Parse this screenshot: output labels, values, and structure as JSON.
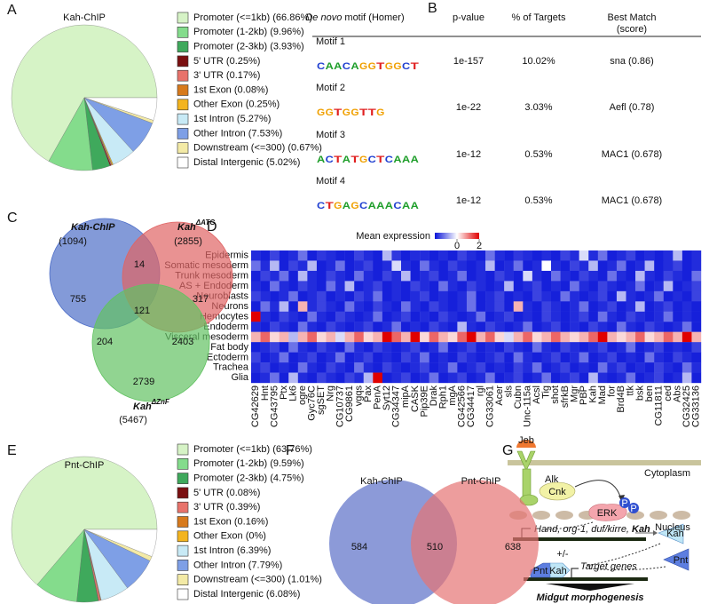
{
  "panel_labels": [
    "A",
    "B",
    "C",
    "D",
    "E",
    "F",
    "G"
  ],
  "chart_data": [
    {
      "type": "pie",
      "title": "Kah-ChIP",
      "categories": [
        "Promoter (<=1kb) (66.86%)",
        "Promoter (1-2kb) (9.96%)",
        "Promoter (2-3kb) (3.93%)",
        "5' UTR (0.25%)",
        "3' UTR (0.17%)",
        "1st Exon (0.08%)",
        "Other Exon (0.25%)",
        "1st Intron (5.27%)",
        "Other Intron (7.53%)",
        "Downstream (<=300) (0.67%)",
        "Distal Intergenic (5.02%)"
      ],
      "values": [
        66.86,
        9.96,
        3.93,
        0.25,
        0.17,
        0.08,
        0.25,
        5.27,
        7.53,
        0.67,
        5.02
      ],
      "colors": [
        "#d6f3c6",
        "#84dc8c",
        "#3fa95c",
        "#7a0f10",
        "#e8736b",
        "#d77a1c",
        "#f3b41f",
        "#c8eaf6",
        "#7e9fe6",
        "#f3eaa6",
        "#ffffff"
      ]
    },
    {
      "type": "pie",
      "title": "Pnt-ChIP",
      "categories": [
        "Promoter (<=1kb) (63.76%)",
        "Promoter (1-2kb) (9.59%)",
        "Promoter (2-3kb) (4.75%)",
        "5' UTR (0.08%)",
        "3' UTR (0.39%)",
        "1st Exon (0.16%)",
        "Other Exon (0%)",
        "1st Intron (6.39%)",
        "Other Intron (7.79%)",
        "Downstream (<=300) (1.01%)",
        "Distal Intergenic (6.08%)"
      ],
      "values": [
        63.76,
        9.59,
        4.75,
        0.08,
        0.39,
        0.16,
        0,
        6.39,
        7.79,
        1.01,
        6.08
      ],
      "colors": [
        "#d6f3c6",
        "#84dc8c",
        "#3fa95c",
        "#7a0f10",
        "#e8736b",
        "#d77a1c",
        "#f3b41f",
        "#c8eaf6",
        "#7e9fe6",
        "#f3eaa6",
        "#ffffff"
      ]
    },
    {
      "type": "heatmap",
      "colorbar_title": "Mean expression",
      "clim": [
        -2,
        2
      ],
      "cticks": [
        0,
        2
      ],
      "colors": [
        "#0a14d8",
        "#ffffff",
        "#e00000"
      ],
      "rows": [
        "Epidermis",
        "Somatic mesoderm",
        "Trunk mesoderm",
        "AS + Endoderm",
        "Neuroblasts",
        "Neurons",
        "Hemocytes",
        "Endoderm",
        "Visceral mesoderm",
        "Fat body",
        "Ectoderm",
        "Trachea",
        "Glia"
      ],
      "columns": [
        "CG42629",
        "Hnt",
        "CG43795",
        "Ptx",
        "Lk6",
        "ogre",
        "Gyc76C",
        "sgSET",
        "Nrg",
        "CG10737",
        "CG9861",
        "vgqs",
        "Pax",
        "PenA",
        "Syt12",
        "CG34347",
        "mipA",
        "CASK",
        "Pip39E",
        "Drak",
        "Rph1",
        "mgA",
        "CG42566",
        "CG34417",
        "rgl",
        "CG33061",
        "Acer",
        "sls",
        "Cubn",
        "Unc-115a",
        "Acsl",
        "Tig",
        "shot",
        "sfrkB",
        "Mgr",
        "PBP",
        "Kah",
        "Mad",
        "for",
        "Brd4B",
        "ttk",
        "bsk",
        "ben",
        "CG11811",
        "ced",
        "Abs",
        "CG32425",
        "CG33136"
      ],
      "values": [
        [
          -1.8,
          -1.9,
          -1.6,
          -1.9,
          -1.8,
          -1.2,
          -1.9,
          -1.7,
          -1.8,
          -1.9,
          -1.9,
          -1.6,
          -1.8,
          -1.9,
          -0.6,
          -1.7,
          -1.9,
          -1.8,
          -1.8,
          -1.9,
          -1.8,
          -1.9,
          -1.6,
          -1.8,
          -1.9,
          -1.2,
          -1.8,
          -1.9,
          -1.7,
          -1.8,
          -1.9,
          -1.8,
          -1.9,
          -1.6,
          -1.8,
          -0.3,
          -1.8,
          -1.2,
          -1.9,
          -1.8,
          -1.6,
          -1.9,
          -1.8,
          -1.9,
          -1.8,
          -0.6,
          -1.9,
          -1.8
        ],
        [
          -1.2,
          -1.8,
          -0.6,
          -1.9,
          -1.6,
          -1.8,
          -0.6,
          -1.9,
          -1.8,
          -1.2,
          -1.9,
          -1.8,
          -1.6,
          -1.9,
          -1.8,
          -0.3,
          -1.8,
          -1.9,
          -1.2,
          -1.8,
          -1.9,
          -1.6,
          -1.8,
          -1.9,
          -1.8,
          -0.6,
          -1.9,
          -1.8,
          -1.2,
          -1.9,
          -1.8,
          0,
          -1.8,
          -1.9,
          -1.6,
          -1.8,
          -0.6,
          -1.9,
          -1.8,
          -1.2,
          -1.9,
          -1.8,
          -0.6,
          -1.9,
          -1.8,
          -1.6,
          -1.9,
          -1.8
        ],
        [
          -1.9,
          -1.6,
          -1.8,
          -1.2,
          -1.9,
          -0.6,
          -1.8,
          -1.9,
          -1.6,
          -1.8,
          -1.9,
          -1.2,
          -1.8,
          -1.9,
          -1.6,
          -1.8,
          -0.6,
          -1.9,
          -1.8,
          -1.6,
          -1.9,
          -1.8,
          -1.2,
          -1.9,
          -1.8,
          -1.9,
          -1.6,
          -1.8,
          -1.9,
          -0.3,
          -1.8,
          -1.9,
          -1.2,
          -1.8,
          -1.9,
          -1.6,
          -1.8,
          -1.9,
          -1.2,
          -1.8,
          -1.9,
          -0.6,
          -1.8,
          -1.9,
          -1.6,
          -1.8,
          -1.9,
          -1.2
        ],
        [
          -1.8,
          -1.9,
          -1.2,
          -1.8,
          -1.9,
          -1.6,
          -1.8,
          -1.9,
          -1.2,
          -1.8,
          -0.6,
          -1.9,
          -1.8,
          -1.6,
          -1.9,
          -1.8,
          -1.9,
          -1.6,
          -1.8,
          -1.9,
          -1.2,
          -1.8,
          -1.9,
          -1.6,
          -1.8,
          -1.9,
          -1.8,
          -0.6,
          -1.9,
          -1.8,
          -1.6,
          -1.9,
          -1.8,
          -1.9,
          -1.2,
          -1.8,
          -1.9,
          -1.6,
          -1.8,
          -1.9,
          -1.8,
          -1.2,
          -1.9,
          -1.8,
          -0.6,
          -1.9,
          -1.8,
          -1.6
        ],
        [
          -1.6,
          -1.8,
          -1.9,
          -1.8,
          -1.2,
          -1.9,
          -1.8,
          -1.6,
          -1.9,
          -1.8,
          -1.9,
          -1.6,
          -1.8,
          -1.2,
          -1.9,
          -1.8,
          -1.9,
          -1.8,
          -1.6,
          -1.9,
          -1.8,
          -1.9,
          -1.8,
          -1.2,
          -1.9,
          -1.8,
          -1.6,
          -1.9,
          -1.8,
          -1.9,
          -1.6,
          -1.8,
          -1.9,
          -1.2,
          -1.8,
          -1.9,
          -1.8,
          -1.6,
          -1.9,
          -0.6,
          -1.8,
          -1.9,
          -1.8,
          -1.2,
          -1.9,
          -1.8,
          -1.9,
          -1.6
        ],
        [
          -1.9,
          -1.2,
          -1.8,
          -0.6,
          -1.9,
          0.6,
          -1.8,
          -1.6,
          -1.8,
          -1.9,
          -1.2,
          -1.8,
          -1.9,
          -1.6,
          -1.8,
          -1.9,
          -1.2,
          -1.8,
          -1.9,
          -1.6,
          -1.8,
          -1.9,
          -1.8,
          -1.2,
          -1.9,
          -1.8,
          -1.6,
          -1.9,
          0.6,
          -1.8,
          -1.9,
          -1.6,
          -1.8,
          -1.9,
          -1.8,
          -1.2,
          -1.9,
          -1.8,
          -1.6,
          -1.9,
          -1.8,
          -0.6,
          -1.9,
          -1.8,
          -1.6,
          -1.9,
          -1.8,
          -1.9
        ],
        [
          2,
          -1.8,
          -1.9,
          -1.6,
          -1.8,
          -1.9,
          -1.2,
          -1.8,
          -1.9,
          -1.6,
          -1.8,
          -1.9,
          -1.8,
          -1.2,
          -1.9,
          -1.8,
          -1.6,
          -1.9,
          -1.8,
          -1.9,
          -1.6,
          -1.8,
          -1.9,
          -1.8,
          -1.2,
          -1.9,
          -1.8,
          -1.6,
          -1.9,
          -1.8,
          -1.9,
          -1.6,
          -1.8,
          -1.9,
          -1.8,
          -1.6,
          -1.9,
          -1.2,
          -1.8,
          -1.9,
          -1.6,
          -1.8,
          -1.9,
          -1.8,
          -1.2,
          -1.9,
          -1.8,
          -1.9
        ],
        [
          -1.8,
          -1.9,
          -1.6,
          -1.8,
          -1.9,
          -1.2,
          -1.8,
          -1.9,
          -1.6,
          -1.8,
          -1.9,
          -1.8,
          -1.6,
          -1.9,
          -1.8,
          -1.2,
          -1.9,
          -1.8,
          -1.9,
          -1.6,
          -1.8,
          -1.9,
          -0.6,
          -1.8,
          -1.9,
          -1.6,
          -1.8,
          -1.9,
          -1.8,
          -1.2,
          -1.9,
          -1.8,
          -1.6,
          -1.9,
          -1.8,
          -1.9,
          -1.6,
          -1.8,
          -1.9,
          -1.2,
          -1.8,
          -1.9,
          -1.6,
          -1.8,
          -1.9,
          -1.8,
          -1.2,
          -1.9
        ],
        [
          0.6,
          1.2,
          0.3,
          0.6,
          -0.6,
          0.6,
          1.2,
          0.3,
          0.6,
          -0.3,
          0.6,
          1.2,
          0.3,
          0.6,
          2,
          1.2,
          0.6,
          2,
          0.3,
          1.2,
          0.6,
          0.3,
          1.2,
          2,
          0.6,
          1.2,
          0.3,
          -0.3,
          0.6,
          1.2,
          0.3,
          0.6,
          1.2,
          0.6,
          0.3,
          0.6,
          1.2,
          2,
          0.6,
          0.3,
          0.6,
          1.2,
          0.3,
          0.6,
          1.2,
          0.6,
          2,
          0.6
        ],
        [
          -1.9,
          -1.8,
          -1.6,
          -1.9,
          -1.2,
          -1.8,
          -1.9,
          -1.6,
          -1.8,
          -1.9,
          -1.2,
          -1.8,
          -1.9,
          -1.6,
          -1.8,
          -1.9,
          -1.8,
          -1.6,
          -1.9,
          -1.8,
          -1.2,
          -1.9,
          -1.8,
          -1.6,
          -1.9,
          -1.8,
          -1.9,
          -1.6,
          -1.8,
          -1.9,
          -1.2,
          -1.8,
          -1.9,
          -1.6,
          -1.8,
          -1.9,
          -1.8,
          -1.6,
          -1.9,
          -1.8,
          -1.2,
          -1.9,
          -1.8,
          -1.6,
          -1.9,
          -1.8,
          -1.9,
          -1.6
        ],
        [
          -1.6,
          -1.9,
          -1.8,
          -1.2,
          -1.9,
          -1.8,
          -1.6,
          -1.9,
          -1.8,
          -1.2,
          -1.9,
          -1.8,
          -1.6,
          -1.9,
          -1.8,
          -1.9,
          -1.6,
          -1.8,
          -1.2,
          -1.9,
          -1.8,
          -1.9,
          -1.6,
          -1.8,
          -1.9,
          -1.8,
          -1.6,
          -1.9,
          -1.2,
          -1.8,
          -1.9,
          -1.8,
          -1.6,
          -1.9,
          -1.8,
          -1.2,
          -1.9,
          -1.8,
          -1.6,
          -1.9,
          -1.8,
          -1.9,
          -1.2,
          -1.8,
          -1.9,
          -1.6,
          -1.8,
          -1.9
        ],
        [
          -1.8,
          -1.6,
          -1.9,
          -1.8,
          -1.9,
          -1.2,
          -1.8,
          -1.9,
          -1.6,
          -1.8,
          -1.9,
          -1.2,
          -1.8,
          -1.9,
          -1.6,
          -1.8,
          -1.9,
          -1.8,
          -1.6,
          -1.9,
          -1.8,
          -1.2,
          -1.9,
          -1.8,
          -1.6,
          -1.9,
          -1.8,
          -1.9,
          -1.6,
          -1.8,
          -1.2,
          -1.9,
          -1.8,
          -1.6,
          -1.9,
          -1.8,
          -1.9,
          -1.2,
          -1.8,
          -1.6,
          -1.9,
          -1.8,
          -1.9,
          -1.6,
          -1.8,
          -1.9,
          -1.2,
          -1.8
        ],
        [
          -1.9,
          -1.8,
          -1.2,
          -1.9,
          -0.6,
          -1.8,
          -1.9,
          -1.6,
          -1.8,
          -1.9,
          -1.6,
          -1.8,
          -0.6,
          2,
          -1.9,
          -1.8,
          -1.6,
          -1.9,
          -1.8,
          -1.2,
          -1.9,
          -1.8,
          -1.6,
          -1.9,
          -1.8,
          -1.2,
          -1.9,
          -1.8,
          -1.6,
          -1.9,
          -1.8,
          -1.2,
          -1.9,
          -1.8,
          -1.6,
          -1.9,
          -0.6,
          -1.8,
          -1.9,
          -1.8,
          -1.2,
          -1.9,
          -1.8,
          -1.6,
          -1.9,
          -1.8,
          -0.6,
          -1.9
        ]
      ]
    }
  ],
  "motif_table": {
    "header": {
      "motif_italic": "De novo",
      "motif_rest": "motif (Homer)",
      "p_value": "p-value",
      "targets": "% of Targets",
      "best_match": [
        "Best Match",
        "(score)"
      ]
    },
    "rows": [
      {
        "name": "Motif 1",
        "logo": [
          "C",
          "A",
          "A",
          "C",
          "A",
          "G",
          "G",
          "T",
          "G",
          "G",
          "C",
          "T"
        ],
        "p_value": "1e-157",
        "targets": "10.02%",
        "best_match": "sna (0.86)"
      },
      {
        "name": "Motif 2",
        "logo": [
          "G",
          "G",
          "T",
          "G",
          "G",
          "T",
          "T",
          "G"
        ],
        "p_value": "1e-22",
        "targets": "3.03%",
        "best_match": "Aefl (0.78)"
      },
      {
        "name": "Motif 3",
        "logo": [
          "A",
          "C",
          "T",
          "A",
          "T",
          "G",
          "C",
          "T",
          "C",
          "A",
          "A",
          "A"
        ],
        "p_value": "1e-12",
        "targets": "0.53%",
        "best_match": "MAC1 (0.678)"
      },
      {
        "name": "Motif 4",
        "logo": [
          "C",
          "T",
          "G",
          "A",
          "G",
          "C",
          "A",
          "A",
          "A",
          "C",
          "A",
          "A"
        ],
        "p_value": "1e-12",
        "targets": "0.53%",
        "best_match": "MAC1 (0.678)"
      }
    ]
  },
  "venn_c": {
    "sets": [
      {
        "name": "Kah-ChIP",
        "count": "(1094)",
        "color": "#4f6fc8"
      },
      {
        "name": "Kah",
        "superscript": "ΔATG",
        "count": "(2855)",
        "color": "#e06464"
      },
      {
        "name": "Kah",
        "superscript": "ΔZnF",
        "count": "(5467)",
        "color": "#62c262"
      }
    ],
    "regions": [
      755,
      14,
      317,
      121,
      204,
      2403,
      2739
    ]
  },
  "venn_f": {
    "sets": [
      {
        "name": "Kah-ChIP",
        "color": "#7f8fd4"
      },
      {
        "name": "Pnt-ChIP",
        "color": "#e57373"
      }
    ],
    "regions": [
      584,
      510,
      638
    ]
  },
  "diagram": {
    "ligand": "Jeb",
    "receptor": "Alk",
    "cytoplasm": "Cytoplasm",
    "adaptor": "Cnk",
    "kinase": "ERK",
    "phospho": [
      "P",
      "P"
    ],
    "nucleus": "Nucleus",
    "genes": "Hand, org-1, duf/kirre,",
    "gene_bold": "Kah",
    "kah": "Kah",
    "pnt": "Pnt",
    "regulation": "+/-",
    "complex": [
      "Pnt",
      "Kah"
    ],
    "target": "Target genes",
    "outcome": "Midgut morphogenesis"
  }
}
